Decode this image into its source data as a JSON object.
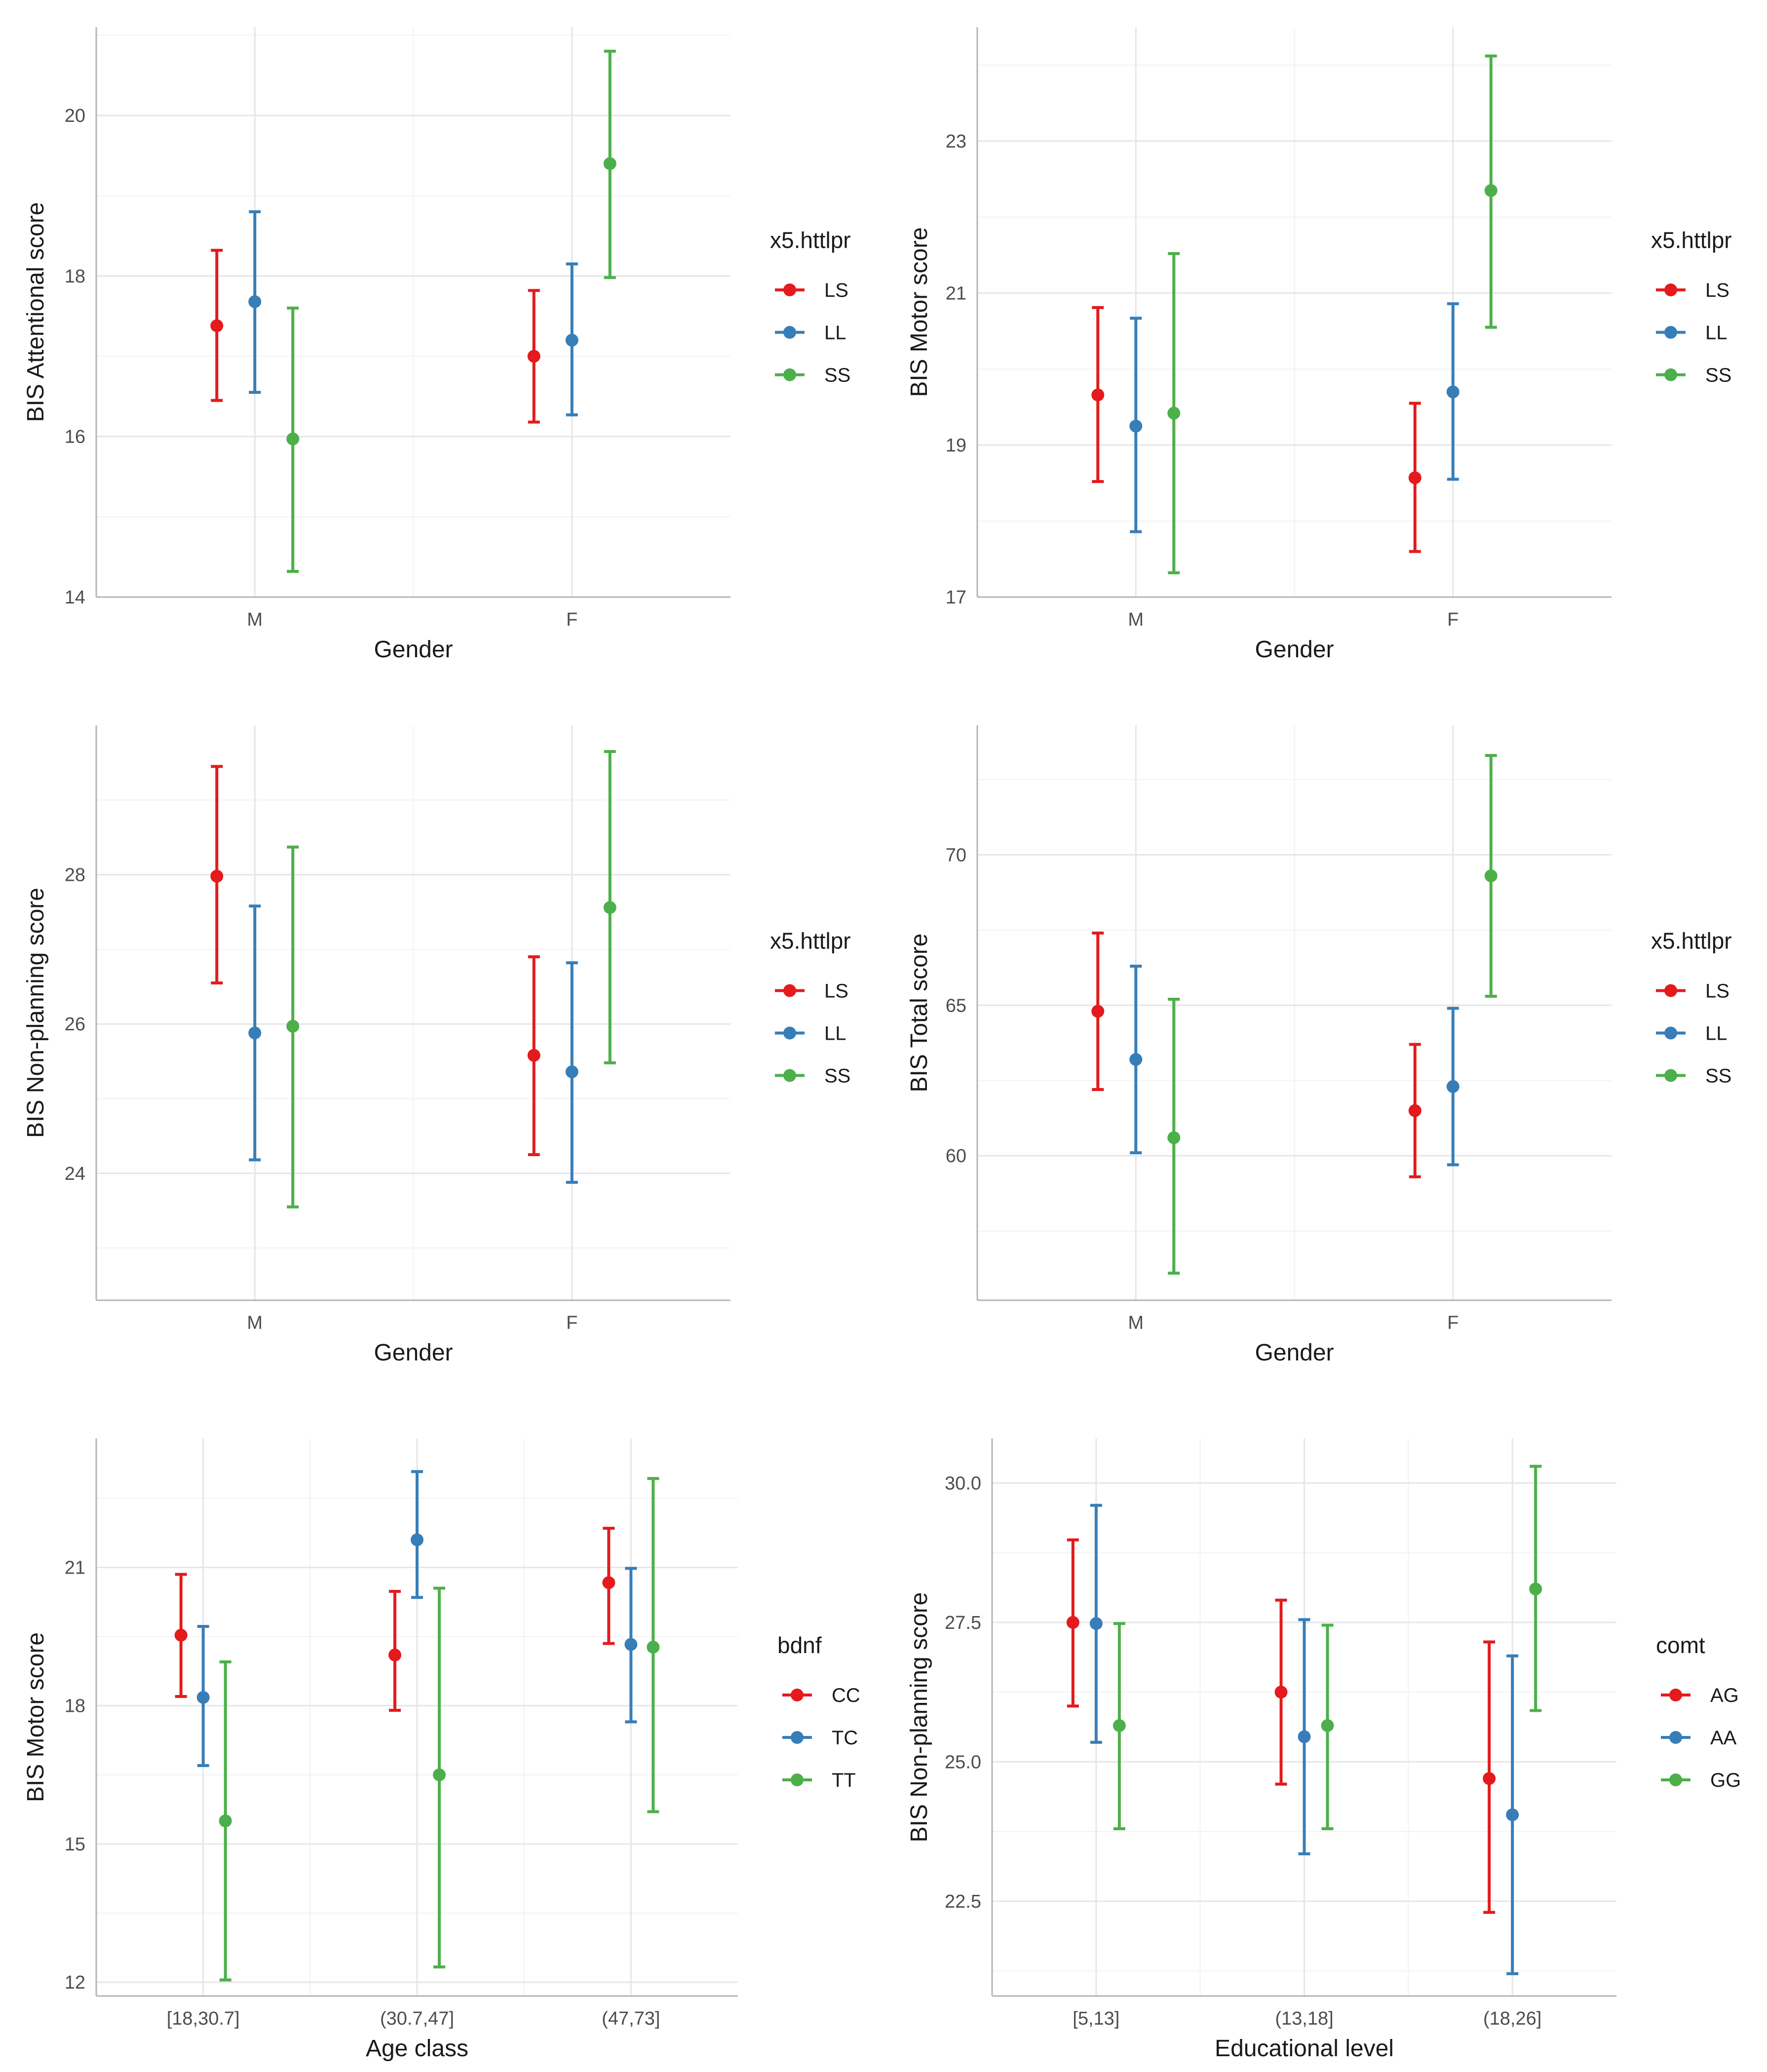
{
  "chart_data": [
    {
      "type": "errorbar",
      "panel": "top-left",
      "title": "",
      "xlabel": "Gender",
      "ylabel": "BIS Attentional score",
      "categories": [
        "M",
        "F"
      ],
      "ylim": [
        14,
        21.1
      ],
      "yticks": [
        14,
        16,
        18,
        20
      ],
      "legend": {
        "title": "x5.httlpr",
        "position": "right",
        "entries": [
          "LS",
          "LL",
          "SS"
        ]
      },
      "series": [
        {
          "name": "LS",
          "color": "#E41A1C",
          "values": [
            17.38,
            17.0
          ],
          "lower": [
            16.45,
            16.18
          ],
          "upper": [
            18.32,
            17.82
          ]
        },
        {
          "name": "LL",
          "color": "#377EB8",
          "values": [
            17.68,
            17.2
          ],
          "lower": [
            16.55,
            16.27
          ],
          "upper": [
            18.8,
            18.15
          ]
        },
        {
          "name": "SS",
          "color": "#4DAF4A",
          "values": [
            15.97,
            19.4
          ],
          "lower": [
            14.32,
            17.98
          ],
          "upper": [
            17.6,
            20.8
          ]
        }
      ]
    },
    {
      "type": "errorbar",
      "panel": "top-right",
      "title": "",
      "xlabel": "Gender",
      "ylabel": "BIS Motor score",
      "categories": [
        "M",
        "F"
      ],
      "ylim": [
        17,
        24.5
      ],
      "yticks": [
        17,
        19,
        21,
        23
      ],
      "legend": {
        "title": "x5.httlpr",
        "position": "right",
        "entries": [
          "LS",
          "LL",
          "SS"
        ]
      },
      "series": [
        {
          "name": "LS",
          "color": "#E41A1C",
          "values": [
            19.66,
            18.57
          ],
          "lower": [
            18.52,
            17.6
          ],
          "upper": [
            20.81,
            19.55
          ]
        },
        {
          "name": "LL",
          "color": "#377EB8",
          "values": [
            19.25,
            19.7
          ],
          "lower": [
            17.86,
            18.55
          ],
          "upper": [
            20.67,
            20.86
          ]
        },
        {
          "name": "SS",
          "color": "#4DAF4A",
          "values": [
            19.42,
            22.35
          ],
          "lower": [
            17.32,
            20.55
          ],
          "upper": [
            21.52,
            24.12
          ]
        }
      ]
    },
    {
      "type": "errorbar",
      "panel": "middle-left",
      "title": "",
      "xlabel": "Gender",
      "ylabel": "BIS Non-planning score",
      "categories": [
        "M",
        "F"
      ],
      "ylim": [
        22.3,
        30
      ],
      "yticks": [
        24,
        26,
        28
      ],
      "legend": {
        "title": "x5.httlpr",
        "position": "right",
        "entries": [
          "LS",
          "LL",
          "SS"
        ]
      },
      "series": [
        {
          "name": "LS",
          "color": "#E41A1C",
          "values": [
            27.98,
            25.58
          ],
          "lower": [
            26.55,
            24.25
          ],
          "upper": [
            29.45,
            26.9
          ]
        },
        {
          "name": "LL",
          "color": "#377EB8",
          "values": [
            25.88,
            25.36
          ],
          "lower": [
            24.18,
            23.88
          ],
          "upper": [
            27.58,
            26.82
          ]
        },
        {
          "name": "SS",
          "color": "#4DAF4A",
          "values": [
            25.97,
            27.56
          ],
          "lower": [
            23.55,
            25.48
          ],
          "upper": [
            28.37,
            29.65
          ]
        }
      ]
    },
    {
      "type": "errorbar",
      "panel": "middle-right",
      "title": "",
      "xlabel": "Gender",
      "ylabel": "BIS Total score",
      "categories": [
        "M",
        "F"
      ],
      "ylim": [
        55.2,
        74.3
      ],
      "yticks": [
        60,
        65,
        70
      ],
      "legend": {
        "title": "x5.httlpr",
        "position": "right",
        "entries": [
          "LS",
          "LL",
          "SS"
        ]
      },
      "series": [
        {
          "name": "LS",
          "color": "#E41A1C",
          "values": [
            64.8,
            61.5
          ],
          "lower": [
            62.2,
            59.3
          ],
          "upper": [
            67.4,
            63.7
          ]
        },
        {
          "name": "LL",
          "color": "#377EB8",
          "values": [
            63.2,
            62.3
          ],
          "lower": [
            60.1,
            59.7
          ],
          "upper": [
            66.3,
            64.9
          ]
        },
        {
          "name": "SS",
          "color": "#4DAF4A",
          "values": [
            60.6,
            69.3
          ],
          "lower": [
            56.1,
            65.3
          ],
          "upper": [
            65.2,
            73.3
          ]
        }
      ]
    },
    {
      "type": "errorbar",
      "panel": "bottom-left",
      "title": "",
      "xlabel": "Age class",
      "ylabel": "BIS Motor score",
      "categories": [
        "[18,30.7]",
        "(30.7,47]",
        "(47,73]"
      ],
      "ylim": [
        11.7,
        23.8
      ],
      "yticks": [
        12,
        15,
        18,
        21
      ],
      "legend": {
        "title": "bdnf",
        "position": "right",
        "entries": [
          "CC",
          "TC",
          "TT"
        ]
      },
      "series": [
        {
          "name": "CC",
          "color": "#E41A1C",
          "values": [
            19.53,
            19.1,
            20.67
          ],
          "lower": [
            18.2,
            17.9,
            19.35
          ],
          "upper": [
            20.85,
            20.48,
            21.85
          ]
        },
        {
          "name": "TC",
          "color": "#377EB8",
          "values": [
            18.18,
            21.6,
            19.33
          ],
          "lower": [
            16.7,
            20.35,
            17.65
          ],
          "upper": [
            19.72,
            23.08,
            20.98
          ]
        },
        {
          "name": "TT",
          "color": "#4DAF4A",
          "values": [
            15.5,
            16.5,
            19.27
          ],
          "lower": [
            12.05,
            12.33,
            15.7
          ],
          "upper": [
            18.95,
            20.55,
            22.93
          ]
        }
      ]
    },
    {
      "type": "errorbar",
      "panel": "bottom-right",
      "title": "",
      "xlabel": "Educational level",
      "ylabel": "BIS Non-planning score",
      "categories": [
        "[5,13]",
        "(13,18]",
        "(18,26]"
      ],
      "ylim": [
        20.8,
        30.8
      ],
      "yticks": [
        22.5,
        25.0,
        27.5,
        30.0
      ],
      "legend": {
        "title": "comt",
        "position": "right",
        "entries": [
          "AG",
          "AA",
          "GG"
        ]
      },
      "series": [
        {
          "name": "AG",
          "color": "#E41A1C",
          "values": [
            27.5,
            26.25,
            24.7
          ],
          "lower": [
            26.0,
            24.6,
            22.3
          ],
          "upper": [
            28.98,
            27.9,
            27.15
          ]
        },
        {
          "name": "AA",
          "color": "#377EB8",
          "values": [
            27.48,
            25.45,
            24.05
          ],
          "lower": [
            25.35,
            23.35,
            21.2
          ],
          "upper": [
            29.6,
            27.55,
            26.9
          ]
        },
        {
          "name": "GG",
          "color": "#4DAF4A",
          "values": [
            25.65,
            25.65,
            28.1
          ],
          "lower": [
            23.8,
            23.8,
            25.92
          ],
          "upper": [
            27.48,
            27.45,
            30.3
          ]
        }
      ]
    }
  ]
}
